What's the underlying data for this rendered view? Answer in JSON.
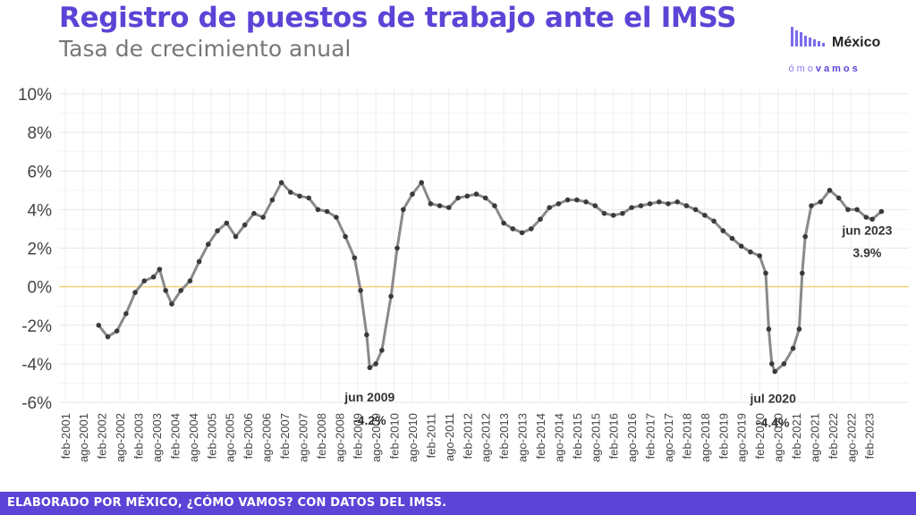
{
  "header": {
    "title": "Registro de puestos de trabajo ante el IMSS",
    "subtitle": "Tasa de crecimiento anual"
  },
  "logo": {
    "name": "México",
    "tagline_light": "cómo",
    "tagline_bold": "vamos",
    "bar_color": "#7b6cf0",
    "text_color": "#5b44d6"
  },
  "footer": {
    "text": "ELABORADO POR MÉXICO, ¿CÓMO VAMOS? CON DATOS DEL IMSS."
  },
  "colors": {
    "accent": "#5b44d6",
    "line": "#8a8a8a",
    "point": "#3a3a3a",
    "zero_line": "#f2d27a"
  },
  "chart_data": {
    "type": "line",
    "title": "Registro de puestos de trabajo ante el IMSS",
    "subtitle": "Tasa de crecimiento anual",
    "xlabel": "",
    "ylabel": "",
    "ylim": [
      -6,
      10
    ],
    "xlim": [
      "2000-12",
      "2024-03"
    ],
    "y_ticks": [
      "-6%",
      "-4%",
      "-2%",
      "0%",
      "2%",
      "4%",
      "6%",
      "8%",
      "10%"
    ],
    "y_tick_values": [
      -6,
      -4,
      -2,
      0,
      2,
      4,
      6,
      8,
      10
    ],
    "x_ticks": [
      "feb-2001",
      "ago-2001",
      "feb-2002",
      "ago-2002",
      "feb-2003",
      "ago-2003",
      "feb-2004",
      "ago-2004",
      "feb-2005",
      "ago-2005",
      "feb-2006",
      "ago-2006",
      "feb-2007",
      "ago-2007",
      "feb-2008",
      "ago-2008",
      "feb-2009",
      "ago-2009",
      "feb-2010",
      "ago-2010",
      "feb-2011",
      "ago-2011",
      "feb-2012",
      "ago-2012",
      "feb-2013",
      "ago-2013",
      "feb-2014",
      "ago-2014",
      "feb-2015",
      "ago-2015",
      "feb-2016",
      "ago-2016",
      "feb-2017",
      "ago-2017",
      "feb-2018",
      "ago-2018",
      "feb-2019",
      "ago-2019",
      "feb-2020",
      "ago-2020",
      "feb-2021",
      "ago-2021",
      "feb-2022",
      "ago-2022",
      "feb-2023"
    ],
    "grid": true,
    "zero_line": true,
    "series": [
      {
        "values": [
          [
            "2002-01",
            -2.0
          ],
          [
            "2002-04",
            -2.6
          ],
          [
            "2002-07",
            -2.3
          ],
          [
            "2002-10",
            -1.4
          ],
          [
            "2003-01",
            -0.3
          ],
          [
            "2003-04",
            0.3
          ],
          [
            "2003-07",
            0.5
          ],
          [
            "2003-09",
            0.9
          ],
          [
            "2003-11",
            -0.2
          ],
          [
            "2004-01",
            -0.9
          ],
          [
            "2004-04",
            -0.2
          ],
          [
            "2004-07",
            0.3
          ],
          [
            "2004-10",
            1.3
          ],
          [
            "2005-01",
            2.2
          ],
          [
            "2005-04",
            2.9
          ],
          [
            "2005-07",
            3.3
          ],
          [
            "2005-10",
            2.6
          ],
          [
            "2006-01",
            3.2
          ],
          [
            "2006-04",
            3.8
          ],
          [
            "2006-07",
            3.6
          ],
          [
            "2006-10",
            4.5
          ],
          [
            "2007-01",
            5.4
          ],
          [
            "2007-04",
            4.9
          ],
          [
            "2007-07",
            4.7
          ],
          [
            "2007-10",
            4.6
          ],
          [
            "2008-01",
            4.0
          ],
          [
            "2008-04",
            3.9
          ],
          [
            "2008-07",
            3.6
          ],
          [
            "2008-10",
            2.6
          ],
          [
            "2009-01",
            1.5
          ],
          [
            "2009-03",
            -0.2
          ],
          [
            "2009-05",
            -2.5
          ],
          [
            "2009-06",
            -4.2
          ],
          [
            "2009-08",
            -4.0
          ],
          [
            "2009-10",
            -3.3
          ],
          [
            "2010-01",
            -0.5
          ],
          [
            "2010-03",
            2.0
          ],
          [
            "2010-05",
            4.0
          ],
          [
            "2010-08",
            4.8
          ],
          [
            "2010-11",
            5.4
          ],
          [
            "2011-02",
            4.3
          ],
          [
            "2011-05",
            4.2
          ],
          [
            "2011-08",
            4.1
          ],
          [
            "2011-11",
            4.6
          ],
          [
            "2012-02",
            4.7
          ],
          [
            "2012-05",
            4.8
          ],
          [
            "2012-08",
            4.6
          ],
          [
            "2012-11",
            4.2
          ],
          [
            "2013-02",
            3.3
          ],
          [
            "2013-05",
            3.0
          ],
          [
            "2013-08",
            2.8
          ],
          [
            "2013-11",
            3.0
          ],
          [
            "2014-02",
            3.5
          ],
          [
            "2014-05",
            4.1
          ],
          [
            "2014-08",
            4.3
          ],
          [
            "2014-11",
            4.5
          ],
          [
            "2015-02",
            4.5
          ],
          [
            "2015-05",
            4.4
          ],
          [
            "2015-08",
            4.2
          ],
          [
            "2015-11",
            3.8
          ],
          [
            "2016-02",
            3.7
          ],
          [
            "2016-05",
            3.8
          ],
          [
            "2016-08",
            4.1
          ],
          [
            "2016-11",
            4.2
          ],
          [
            "2017-02",
            4.3
          ],
          [
            "2017-05",
            4.4
          ],
          [
            "2017-08",
            4.3
          ],
          [
            "2017-11",
            4.4
          ],
          [
            "2018-02",
            4.2
          ],
          [
            "2018-05",
            4.0
          ],
          [
            "2018-08",
            3.7
          ],
          [
            "2018-11",
            3.4
          ],
          [
            "2019-02",
            2.9
          ],
          [
            "2019-05",
            2.5
          ],
          [
            "2019-08",
            2.1
          ],
          [
            "2019-11",
            1.8
          ],
          [
            "2020-02",
            1.6
          ],
          [
            "2020-04",
            0.7
          ],
          [
            "2020-05",
            -2.2
          ],
          [
            "2020-06",
            -4.0
          ],
          [
            "2020-07",
            -4.4
          ],
          [
            "2020-10",
            -4.0
          ],
          [
            "2021-01",
            -3.2
          ],
          [
            "2021-03",
            -2.2
          ],
          [
            "2021-04",
            0.7
          ],
          [
            "2021-05",
            2.6
          ],
          [
            "2021-07",
            4.2
          ],
          [
            "2021-10",
            4.4
          ],
          [
            "2022-01",
            5.0
          ],
          [
            "2022-04",
            4.6
          ],
          [
            "2022-07",
            4.0
          ],
          [
            "2022-10",
            4.0
          ],
          [
            "2023-01",
            3.6
          ],
          [
            "2023-03",
            3.5
          ],
          [
            "2023-06",
            3.9
          ]
        ]
      }
    ],
    "annotations": [
      {
        "x": "2009-06",
        "y": -4.2,
        "date_label": "jun 2009",
        "value_label": "-4.2%"
      },
      {
        "x": "2020-07",
        "y": -4.4,
        "date_label": "jul 2020",
        "value_label": "-4.4%"
      },
      {
        "x": "2023-06",
        "y": 3.9,
        "date_label": "jun 2023",
        "value_label": "3.9%"
      }
    ]
  }
}
